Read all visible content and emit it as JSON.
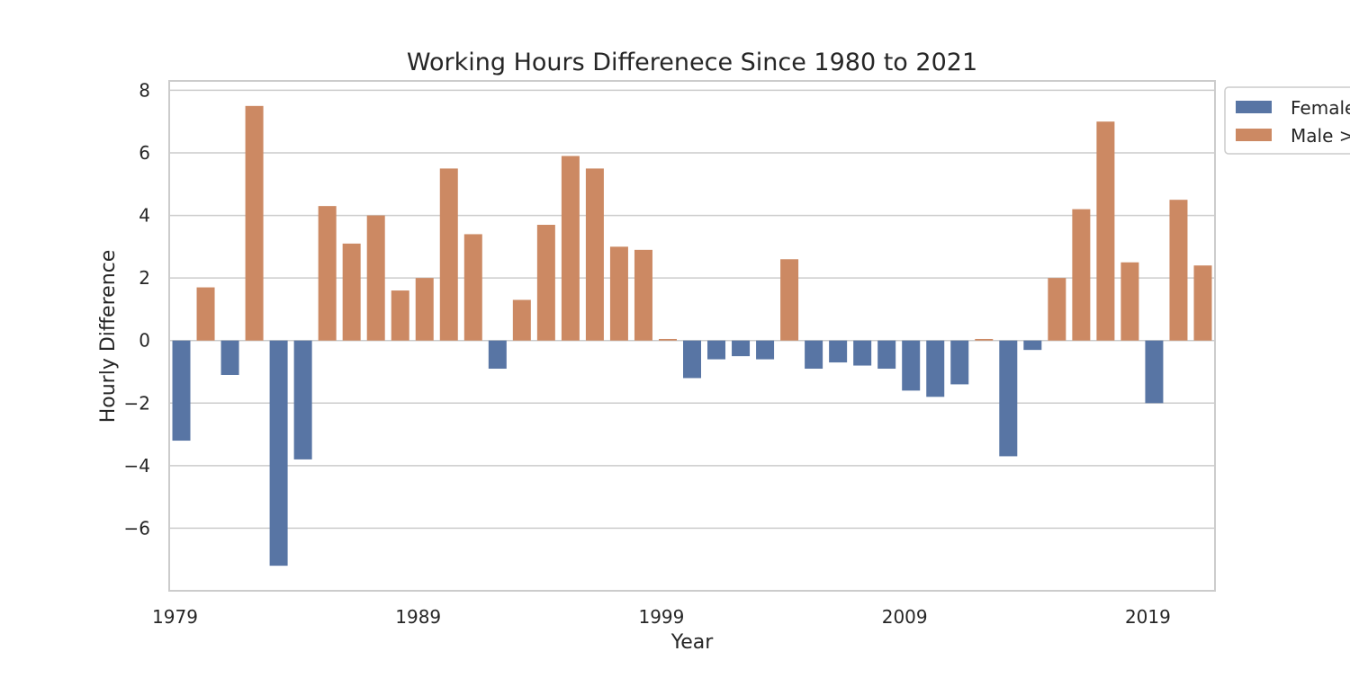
{
  "chart_data": {
    "type": "bar",
    "title": "Working Hours Differenece Since 1980 to 2021",
    "xlabel": "Year",
    "ylabel": "Hourly Difference",
    "ylim": [
      -8,
      8.3
    ],
    "yticks": [
      8,
      6,
      4,
      2,
      0,
      -2,
      -4,
      -6
    ],
    "ytick_labels": [
      "8",
      "6",
      "4",
      "2",
      "0",
      "−2",
      "−4",
      "−6"
    ],
    "xtick_labels": [
      "1979",
      "1989",
      "1999",
      "2009",
      "2019"
    ],
    "xtick_years": [
      1979,
      1989,
      1999,
      2009,
      2019
    ],
    "grid": true,
    "legend_placement": "outside-top-right",
    "x": [
      1979,
      1980,
      1981,
      1982,
      1983,
      1984,
      1985,
      1986,
      1987,
      1988,
      1989,
      1990,
      1991,
      1992,
      1993,
      1994,
      1995,
      1996,
      1997,
      1998,
      1999,
      2000,
      2001,
      2002,
      2003,
      2004,
      2005,
      2006,
      2007,
      2008,
      2009,
      2010,
      2011,
      2012,
      2013,
      2014,
      2015,
      2016,
      2017,
      2018,
      2019,
      2020,
      2021
    ],
    "series": [
      {
        "name": "Female",
        "color": "#5875a4",
        "values": [
          -3.2,
          null,
          -1.1,
          null,
          -7.2,
          -3.8,
          null,
          null,
          null,
          null,
          null,
          null,
          null,
          -0.9,
          null,
          null,
          null,
          null,
          null,
          null,
          null,
          -1.2,
          -0.6,
          -0.5,
          -0.6,
          null,
          -0.9,
          -0.7,
          -0.8,
          -0.9,
          -1.6,
          -1.8,
          -1.4,
          null,
          -3.7,
          -0.3,
          null,
          null,
          null,
          null,
          -2.0,
          null,
          null
        ]
      },
      {
        "name": "Male >",
        "color": "#cc8963",
        "values": [
          null,
          1.7,
          null,
          7.5,
          null,
          null,
          4.3,
          3.1,
          4.0,
          1.6,
          2.0,
          5.5,
          3.4,
          null,
          1.3,
          3.7,
          5.9,
          5.5,
          3.0,
          2.9,
          0.05,
          null,
          null,
          null,
          null,
          2.6,
          null,
          null,
          null,
          null,
          null,
          null,
          null,
          0.05,
          null,
          null,
          2.0,
          4.2,
          7.0,
          2.5,
          null,
          4.5,
          2.4
        ]
      }
    ]
  }
}
